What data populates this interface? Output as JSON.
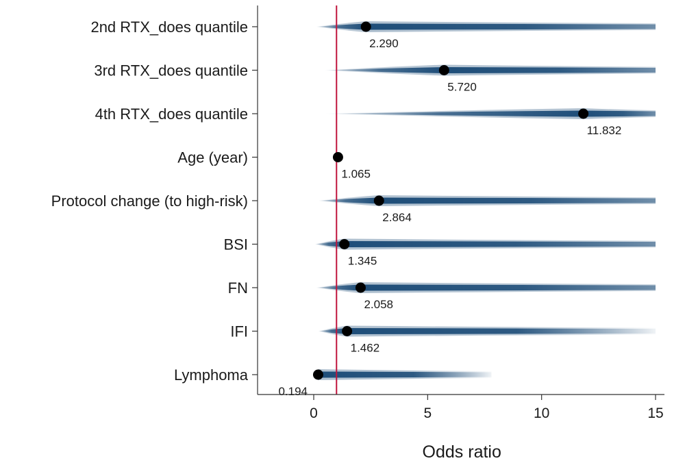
{
  "chart_data": {
    "type": "forest",
    "xlabel": "Odds ratio",
    "xlim": [
      -2.5,
      15.5
    ],
    "xticks": [
      0,
      5,
      10,
      15
    ],
    "reference_line": 1,
    "colors": {
      "reference_line": "#c0143c",
      "band": "#1f4e79",
      "point": "#000000"
    },
    "categories": [
      "2nd RTX_does quantile",
      "3rd RTX_does quantile",
      "4th RTX_does quantile",
      "Age (year)",
      "Protocol change (to high-risk)",
      "BSI",
      "FN",
      "IFI",
      "Lymphoma"
    ],
    "estimates": [
      2.29,
      5.72,
      11.832,
      1.065,
      2.864,
      1.345,
      2.058,
      1.462,
      0.194
    ],
    "labels": [
      "2.290",
      "5.720",
      "11.832",
      "1.065",
      "2.864",
      "1.345",
      "2.058",
      "1.462",
      "0.194"
    ],
    "band_ranges": [
      [
        0.1,
        15
      ],
      [
        0.5,
        15
      ],
      [
        0.5,
        15
      ],
      [
        1.0,
        1.1
      ],
      [
        0.2,
        15
      ],
      [
        0.05,
        15
      ],
      [
        0.1,
        15
      ],
      [
        0.2,
        15
      ],
      [
        0.0,
        7.8
      ]
    ]
  }
}
